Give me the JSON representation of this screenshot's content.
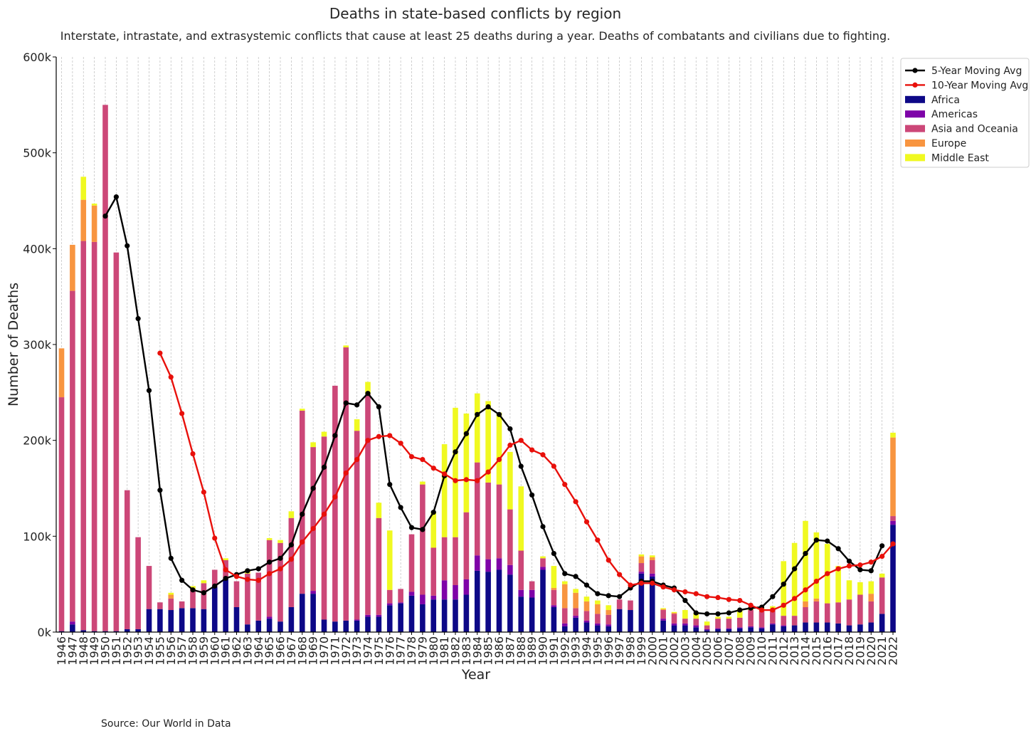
{
  "chart_data": {
    "type": "bar",
    "stacked": true,
    "title": "Deaths in state-based conflicts by region",
    "subtitle": "Interstate, intrastate, and extrasystemic conflicts that cause at least 25 deaths during a year. Deaths of combatants and civilians due to fighting.",
    "xlabel": "Year",
    "ylabel": "Number of Deaths",
    "source": "Source: Our World in Data",
    "ylim": [
      0,
      600000
    ],
    "y_ticks": [
      0,
      100000,
      200000,
      300000,
      400000,
      500000,
      600000
    ],
    "y_tick_labels": [
      "0k",
      "100k",
      "200k",
      "300k",
      "400k",
      "500k",
      "600k"
    ],
    "grid": "vertical dashed",
    "legend_position": "top-right",
    "categories": [
      "1946",
      "1947",
      "1948",
      "1949",
      "1950",
      "1951",
      "1952",
      "1953",
      "1954",
      "1955",
      "1956",
      "1957",
      "1958",
      "1959",
      "1960",
      "1961",
      "1962",
      "1963",
      "1964",
      "1965",
      "1966",
      "1967",
      "1968",
      "1969",
      "1970",
      "1971",
      "1972",
      "1973",
      "1974",
      "1975",
      "1976",
      "1977",
      "1978",
      "1979",
      "1980",
      "1981",
      "1982",
      "1983",
      "1984",
      "1985",
      "1986",
      "1987",
      "1988",
      "1989",
      "1990",
      "1991",
      "1992",
      "1993",
      "1994",
      "1995",
      "1996",
      "1997",
      "1998",
      "1999",
      "2000",
      "2001",
      "2002",
      "2003",
      "2004",
      "2005",
      "2006",
      "2007",
      "2008",
      "2009",
      "2010",
      "2011",
      "2012",
      "2013",
      "2014",
      "2015",
      "2016",
      "2017",
      "2018",
      "2019",
      "2020",
      "2021",
      "2022"
    ],
    "series": [
      {
        "name": "Africa",
        "color": "#0d0887",
        "values": [
          1000,
          8000,
          2000,
          1000,
          1000,
          1000,
          3000,
          3000,
          24000,
          24000,
          23000,
          25000,
          25000,
          24000,
          47000,
          55000,
          26000,
          8000,
          12000,
          14000,
          11000,
          26000,
          40000,
          40000,
          13000,
          11000,
          12000,
          12000,
          16000,
          16000,
          28000,
          30000,
          38000,
          29000,
          34000,
          34000,
          34000,
          39000,
          64000,
          63000,
          65000,
          60000,
          37000,
          36000,
          65000,
          26000,
          6000,
          15000,
          10000,
          7000,
          6000,
          24000,
          23000,
          61000,
          58000,
          12000,
          7000,
          7000,
          5000,
          2000,
          3000,
          3000,
          4000,
          5000,
          4000,
          8000,
          6000,
          7000,
          10000,
          10000,
          10000,
          9000,
          7000,
          8000,
          10000,
          19000,
          112000
        ]
      },
      {
        "name": "Americas",
        "color": "#7e03a8",
        "values": [
          0,
          3000,
          0,
          0,
          0,
          0,
          0,
          0,
          0,
          0,
          0,
          0,
          0,
          0,
          0,
          0,
          0,
          0,
          0,
          2000,
          0,
          0,
          0,
          3000,
          0,
          0,
          0,
          1000,
          2000,
          2000,
          2000,
          1000,
          4000,
          10000,
          4000,
          20000,
          15000,
          16000,
          16000,
          13000,
          12000,
          10000,
          7000,
          8000,
          3000,
          2000,
          3000,
          2000,
          2000,
          2000,
          2000,
          0,
          0,
          2000,
          3000,
          2000,
          2000,
          2000,
          2000,
          1000,
          1000,
          1000,
          1000,
          1000,
          1000,
          1000,
          1000,
          0,
          0,
          0,
          0,
          0,
          0,
          0,
          0,
          0,
          4000
        ]
      },
      {
        "name": "Asia and Oceania",
        "color": "#cc4778",
        "values": [
          244000,
          345000,
          406000,
          406000,
          549000,
          395000,
          145000,
          96000,
          45000,
          7000,
          12000,
          7000,
          20000,
          27000,
          18000,
          20000,
          27000,
          53000,
          50000,
          80000,
          82000,
          93000,
          191000,
          150000,
          191000,
          246000,
          285000,
          197000,
          230000,
          101000,
          14000,
          14000,
          60000,
          115000,
          50000,
          45000,
          50000,
          70000,
          97000,
          80000,
          77000,
          58000,
          41000,
          9000,
          9000,
          16000,
          16000,
          8000,
          10000,
          10000,
          10000,
          10000,
          10000,
          9000,
          14000,
          9000,
          10000,
          5000,
          7000,
          4000,
          10000,
          10000,
          10000,
          17000,
          17000,
          15000,
          10000,
          10000,
          16000,
          22000,
          20000,
          22000,
          27000,
          31000,
          22000,
          38000,
          5000
        ]
      },
      {
        "name": "Europe",
        "color": "#f89540",
        "values": [
          51000,
          48000,
          43000,
          38000,
          0,
          0,
          0,
          0,
          0,
          0,
          4000,
          0,
          0,
          0,
          0,
          0,
          0,
          0,
          0,
          0,
          0,
          0,
          0,
          0,
          0,
          0,
          0,
          0,
          0,
          0,
          0,
          0,
          0,
          0,
          0,
          0,
          0,
          0,
          0,
          0,
          0,
          0,
          0,
          0,
          0,
          2000,
          25000,
          16000,
          10000,
          10000,
          5000,
          0,
          0,
          7000,
          3000,
          1000,
          1000,
          0,
          0,
          0,
          0,
          0,
          0,
          0,
          0,
          0,
          0,
          0,
          6000,
          3000,
          0,
          0,
          0,
          0,
          8000,
          0,
          82000
        ]
      },
      {
        "name": "Middle East",
        "color": "#f0f921",
        "values": [
          0,
          0,
          24000,
          2000,
          0,
          0,
          0,
          0,
          0,
          0,
          2000,
          0,
          3000,
          3000,
          0,
          2000,
          0,
          4000,
          0,
          2000,
          3000,
          7000,
          2000,
          5000,
          5000,
          0,
          2000,
          12000,
          13000,
          16000,
          62000,
          0,
          0,
          3000,
          37000,
          97000,
          135000,
          103000,
          72000,
          85000,
          75000,
          60000,
          67000,
          0,
          2000,
          23000,
          3000,
          4000,
          5000,
          4000,
          5000,
          0,
          0,
          2000,
          2000,
          1000,
          1000,
          9000,
          6000,
          4000,
          2000,
          2000,
          9000,
          3000,
          3000,
          3000,
          57000,
          76000,
          84000,
          69000,
          62000,
          38000,
          20000,
          13000,
          13000,
          4000,
          5000
        ]
      }
    ],
    "lines": [
      {
        "name": "5-Year Moving Avg",
        "color": "#000000",
        "start_year": "1950",
        "values": [
          434000,
          454000,
          403000,
          327000,
          252000,
          148000,
          77000,
          54000,
          44000,
          41000,
          48000,
          56000,
          60000,
          64000,
          66000,
          73000,
          77000,
          91000,
          123000,
          150000,
          172000,
          205000,
          239000,
          237000,
          249000,
          235000,
          154000,
          130000,
          109000,
          107000,
          125000,
          163000,
          188000,
          207000,
          227000,
          235000,
          227000,
          212000,
          173000,
          143000,
          110000,
          82000,
          61000,
          58000,
          49000,
          40000,
          38000,
          37000,
          46000,
          53000,
          53000,
          49000,
          46000,
          33000,
          20000,
          19000,
          19000,
          20000,
          23000,
          25000,
          26000,
          37000,
          50000,
          66000,
          82000,
          96000,
          95000,
          87000,
          74000,
          65000,
          64000,
          90000
        ]
      },
      {
        "name": "10-Year Moving Avg",
        "color": "#e8100b",
        "start_year": "1955",
        "values": [
          291000,
          266000,
          228000,
          186000,
          146000,
          98000,
          65000,
          58000,
          55000,
          54000,
          61000,
          66000,
          76000,
          94000,
          108000,
          123000,
          141000,
          166000,
          180000,
          200000,
          204000,
          205000,
          197000,
          183000,
          180000,
          171000,
          165000,
          158000,
          159000,
          158000,
          167000,
          180000,
          195000,
          200000,
          190000,
          185000,
          173000,
          154000,
          136000,
          115000,
          96000,
          75000,
          60000,
          49000,
          51000,
          51000,
          47000,
          44000,
          42000,
          40000,
          37000,
          36000,
          34000,
          33000,
          28000,
          23000,
          23000,
          28000,
          35000,
          44000,
          53000,
          61000,
          66000,
          69000,
          70000,
          73000,
          79000,
          92000
        ]
      }
    ]
  }
}
